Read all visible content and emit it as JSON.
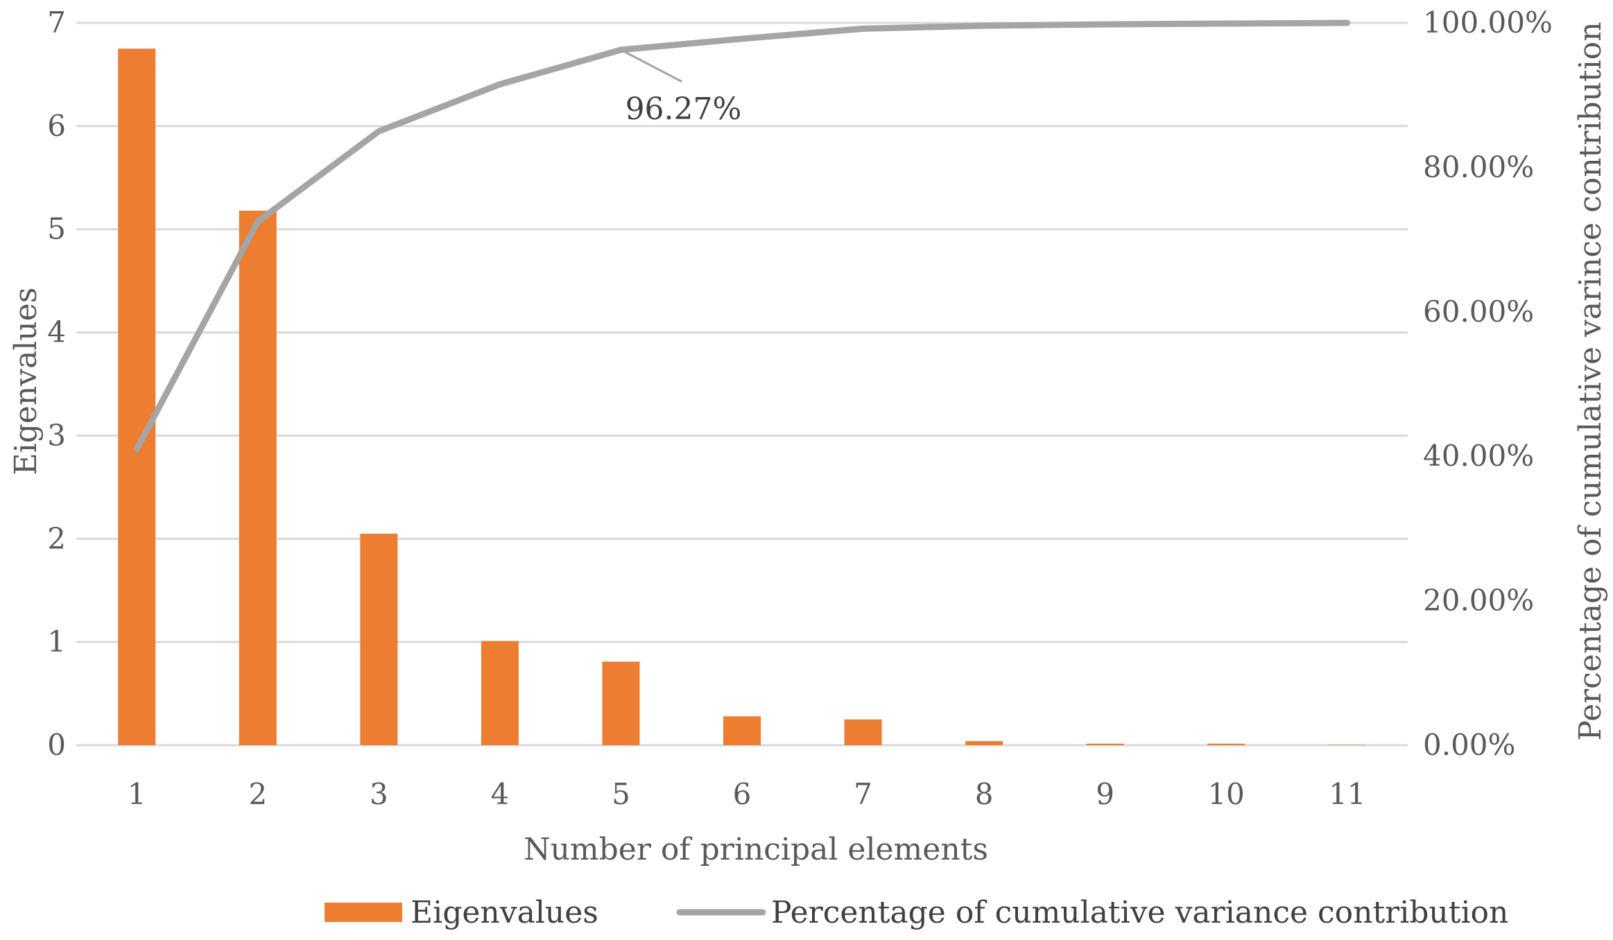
{
  "chart_data": {
    "type": "bar",
    "categories": [
      "1",
      "2",
      "3",
      "4",
      "5",
      "6",
      "7",
      "8",
      "9",
      "10",
      "11"
    ],
    "series": [
      {
        "name": "Eigenvalues",
        "type": "bar",
        "axis": "left",
        "color": "#ED7D31",
        "values": [
          6.75,
          5.18,
          2.05,
          1.01,
          0.81,
          0.28,
          0.25,
          0.04,
          0.015,
          0.015,
          0.003
        ]
      },
      {
        "name": "Percentage of cumulative variance contribution",
        "type": "line",
        "axis": "right",
        "color": "#A5A5A5",
        "values": [
          41.0,
          72.5,
          85.0,
          91.5,
          96.27,
          97.8,
          99.2,
          99.6,
          99.8,
          99.9,
          100.0
        ]
      }
    ],
    "xlabel": "Number of principal elements",
    "ylabel": "Eigenvalues",
    "y2label": "Percentage of cumulative varince contribution",
    "ylim": [
      0,
      7
    ],
    "y_ticks": [
      "0",
      "1",
      "2",
      "3",
      "4",
      "5",
      "6",
      "7"
    ],
    "y2lim": [
      0,
      100
    ],
    "y2_ticks": [
      "0.00%",
      "20.00%",
      "40.00%",
      "60.00%",
      "80.00%",
      "100.00%"
    ],
    "annotation": {
      "text": "96.27%",
      "category": "5",
      "value": 96.27
    },
    "legend": {
      "position": "bottom",
      "items": [
        "Eigenvalues",
        "Percentage of cumulative variance contribution"
      ]
    },
    "gridlines": true,
    "gridline_color": "#D9D9D9"
  }
}
